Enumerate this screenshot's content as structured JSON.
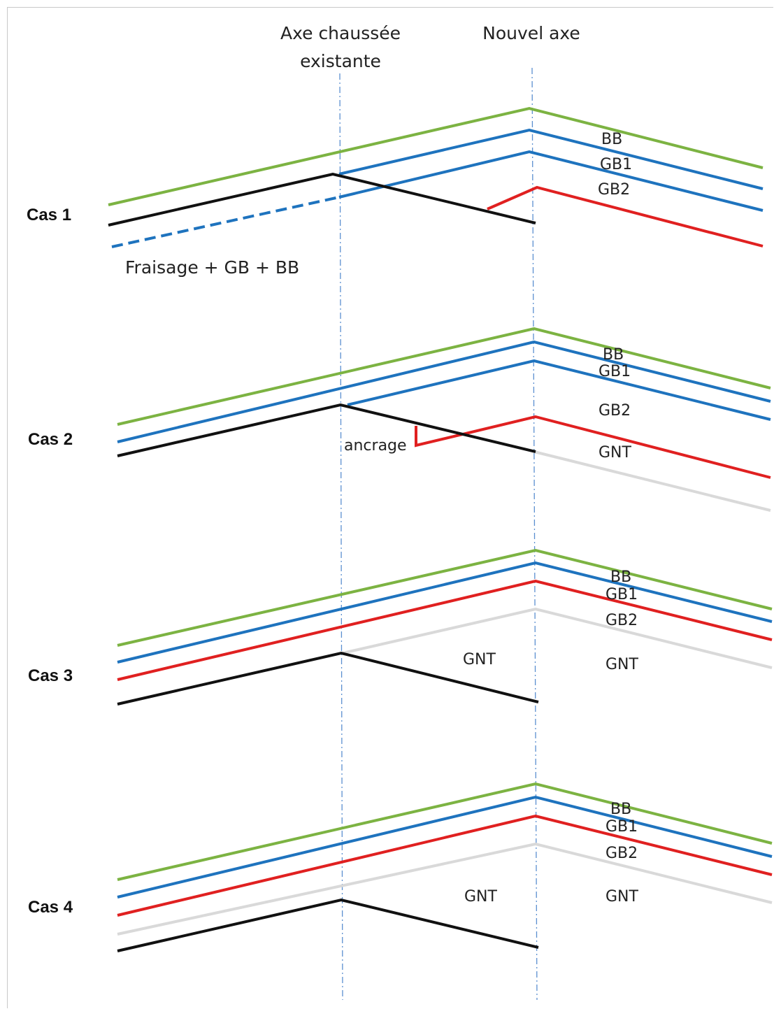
{
  "headers": {
    "existing_axis": [
      "Axe chaussée",
      "existante"
    ],
    "new_axis": "Nouvel axe"
  },
  "colors": {
    "BB": "#7cb342",
    "GB1": "#1e73be",
    "GB2": "#e02020",
    "GNT": "#d9d9d9",
    "existing": "#111111",
    "axis": "#5b8fd0"
  },
  "cases": [
    {
      "label": "Cas 1",
      "note": "Fraisage + GB + BB",
      "layers": [
        "BB",
        "GB1",
        "GB2"
      ]
    },
    {
      "label": "Cas 2",
      "note": "ancrage",
      "layers": [
        "BB",
        "GB1",
        "GB2",
        "GNT"
      ]
    },
    {
      "label": "Cas 3",
      "layers": [
        "BB",
        "GB1",
        "GB2",
        "GNT",
        "GNT"
      ]
    },
    {
      "label": "Cas 4",
      "layers": [
        "BB",
        "GB1",
        "GB2",
        "GNT",
        "GNT"
      ]
    }
  ]
}
